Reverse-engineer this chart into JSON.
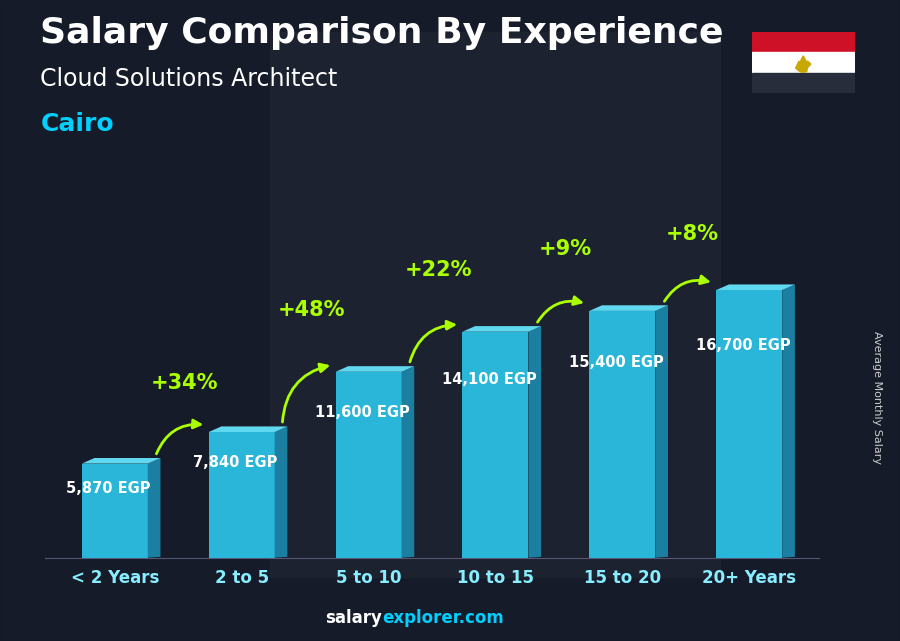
{
  "title": "Salary Comparison By Experience",
  "subtitle": "Cloud Solutions Architect",
  "city": "Cairo",
  "ylabel": "Average Monthly Salary",
  "categories": [
    "< 2 Years",
    "2 to 5",
    "5 to 10",
    "10 to 15",
    "15 to 20",
    "20+ Years"
  ],
  "values": [
    5870,
    7840,
    11600,
    14100,
    15400,
    16700
  ],
  "labels": [
    "5,870 EGP",
    "7,840 EGP",
    "11,600 EGP",
    "14,100 EGP",
    "15,400 EGP",
    "16,700 EGP"
  ],
  "pct_labels": [
    "+34%",
    "+48%",
    "+22%",
    "+9%",
    "+8%"
  ],
  "bar_face_color": "#29b6d8",
  "bar_side_color": "#1a7fa0",
  "bar_top_color": "#60d8f0",
  "bg_color": "#1a1f2e",
  "title_color": "#ffffff",
  "subtitle_color": "#ffffff",
  "city_color": "#00cfff",
  "label_color": "#ffffff",
  "pct_color": "#aaff00",
  "xtick_color": "#88eeff",
  "watermark_salary_color": "#ffffff",
  "watermark_explorer_color": "#00cfff",
  "ylabel_color": "#cccccc",
  "ylim": [
    0,
    20000
  ],
  "title_fontsize": 26,
  "subtitle_fontsize": 17,
  "city_fontsize": 18,
  "label_fontsize": 10.5,
  "pct_fontsize": 15,
  "xtick_fontsize": 12,
  "ylabel_fontsize": 8
}
